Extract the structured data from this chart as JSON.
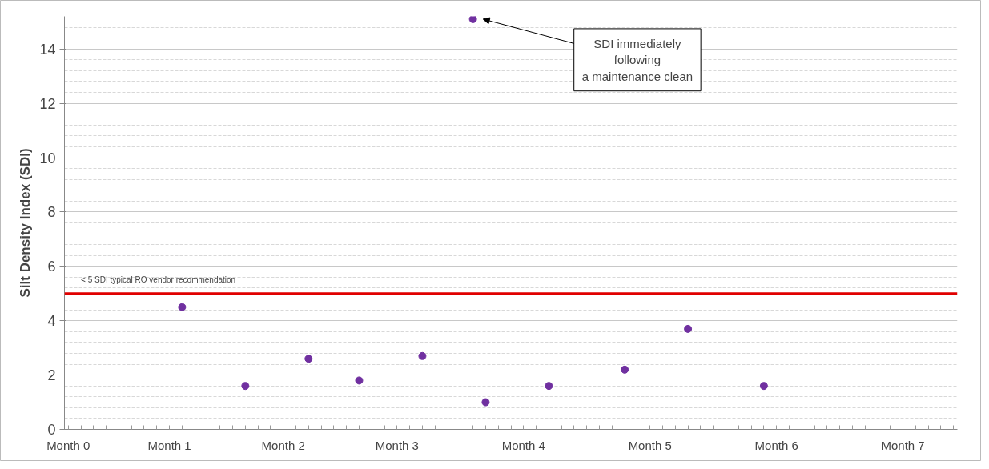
{
  "chart_data": {
    "type": "scatter",
    "ylabel": "Silt Density Index (SDI)",
    "categories": [
      "Month 0",
      null,
      null,
      null,
      null,
      null,
      null,
      null,
      "Month 1",
      null,
      null,
      null,
      null,
      null,
      null,
      null,
      null,
      "Month 2",
      null,
      null,
      null,
      null,
      null,
      null,
      null,
      null,
      "Month 3",
      null,
      null,
      null,
      null,
      null,
      null,
      null,
      null,
      null,
      "Month 4",
      null,
      null,
      null,
      null,
      null,
      null,
      null,
      null,
      null,
      "Month 5",
      null,
      null,
      null,
      null,
      null,
      null,
      null,
      null,
      null,
      "Month 6",
      null,
      null,
      null,
      null,
      null,
      null,
      null,
      null,
      null,
      "Month 7",
      null,
      null,
      null,
      null
    ],
    "series": [
      {
        "color": "#7030a0",
        "values": [
          null,
          null,
          null,
          null,
          null,
          null,
          null,
          null,
          null,
          4.5,
          null,
          null,
          null,
          null,
          1.6,
          null,
          null,
          null,
          null,
          2.6,
          null,
          null,
          null,
          1.8,
          null,
          null,
          null,
          null,
          2.7,
          null,
          null,
          null,
          15.1,
          1.0,
          null,
          null,
          null,
          null,
          1.6,
          null,
          null,
          null,
          null,
          null,
          2.2,
          null,
          null,
          null,
          null,
          3.7,
          null,
          null,
          null,
          null,
          null,
          1.6,
          null,
          null,
          null,
          null,
          null,
          null,
          null,
          null,
          null,
          null,
          null,
          null,
          null,
          null,
          null
        ]
      }
    ],
    "ylim": [
      0,
      15.2
    ],
    "yticks": [
      0,
      2,
      4,
      6,
      8,
      10,
      12,
      14
    ],
    "grid": "y",
    "marker": "circle",
    "ref_lines": [
      {
        "axis": "y",
        "value": 5,
        "label": "< 5 SDI typical RO vendor recommendation",
        "color": "#e00000"
      }
    ],
    "annotations": [
      "SDI immediately following a maintenance clean"
    ]
  }
}
